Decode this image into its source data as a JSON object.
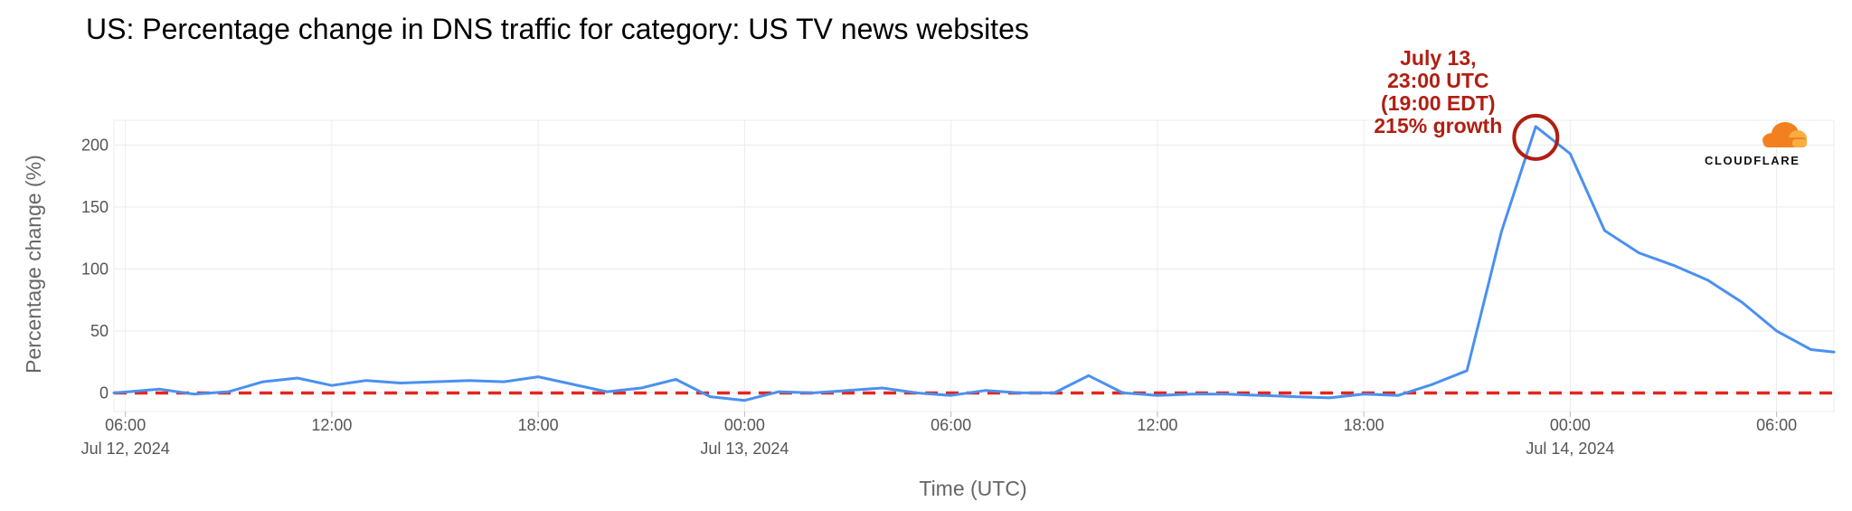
{
  "chart_data": {
    "type": "line",
    "title": "US: Percentage change in DNS traffic for category: US TV news websites",
    "xlabel": "Time (UTC)",
    "ylabel": "Percentage change (%)",
    "ylim": [
      -15,
      220
    ],
    "xlim": [
      "2024-07-12 05:40",
      "2024-07-14 07:40"
    ],
    "grid": true,
    "y_ticks": [
      0,
      50,
      100,
      150,
      200
    ],
    "x_ticks": [
      {
        "at": "2024-07-12 06:00",
        "label": "06:00",
        "sublabel": "Jul 12, 2024"
      },
      {
        "at": "2024-07-12 12:00",
        "label": "12:00",
        "sublabel": ""
      },
      {
        "at": "2024-07-12 18:00",
        "label": "18:00",
        "sublabel": ""
      },
      {
        "at": "2024-07-13 00:00",
        "label": "00:00",
        "sublabel": "Jul 13, 2024"
      },
      {
        "at": "2024-07-13 06:00",
        "label": "06:00",
        "sublabel": ""
      },
      {
        "at": "2024-07-13 12:00",
        "label": "12:00",
        "sublabel": ""
      },
      {
        "at": "2024-07-13 18:00",
        "label": "18:00",
        "sublabel": ""
      },
      {
        "at": "2024-07-14 00:00",
        "label": "00:00",
        "sublabel": "Jul 14, 2024"
      },
      {
        "at": "2024-07-14 06:00",
        "label": "06:00",
        "sublabel": ""
      }
    ],
    "series": [
      {
        "color": "#4a90f0",
        "points": [
          [
            "2024-07-12 05:40",
            0
          ],
          [
            "2024-07-12 07:00",
            3
          ],
          [
            "2024-07-12 08:00",
            -1
          ],
          [
            "2024-07-12 09:00",
            1
          ],
          [
            "2024-07-12 10:00",
            9
          ],
          [
            "2024-07-12 11:00",
            12
          ],
          [
            "2024-07-12 12:00",
            6
          ],
          [
            "2024-07-12 13:00",
            10
          ],
          [
            "2024-07-12 14:00",
            8
          ],
          [
            "2024-07-12 15:00",
            9
          ],
          [
            "2024-07-12 16:00",
            10
          ],
          [
            "2024-07-12 17:00",
            9
          ],
          [
            "2024-07-12 18:00",
            13
          ],
          [
            "2024-07-12 19:00",
            7
          ],
          [
            "2024-07-12 20:00",
            1
          ],
          [
            "2024-07-12 21:00",
            4
          ],
          [
            "2024-07-12 22:00",
            11
          ],
          [
            "2024-07-12 23:00",
            -3
          ],
          [
            "2024-07-13 00:00",
            -6
          ],
          [
            "2024-07-13 01:00",
            1
          ],
          [
            "2024-07-13 02:00",
            0
          ],
          [
            "2024-07-13 03:00",
            2
          ],
          [
            "2024-07-13 04:00",
            4
          ],
          [
            "2024-07-13 05:00",
            0
          ],
          [
            "2024-07-13 06:00",
            -2
          ],
          [
            "2024-07-13 07:00",
            2
          ],
          [
            "2024-07-13 08:00",
            0
          ],
          [
            "2024-07-13 09:00",
            0
          ],
          [
            "2024-07-13 10:00",
            14
          ],
          [
            "2024-07-13 11:00",
            0
          ],
          [
            "2024-07-13 12:00",
            -2
          ],
          [
            "2024-07-13 13:00",
            -1
          ],
          [
            "2024-07-13 14:00",
            -1
          ],
          [
            "2024-07-13 15:00",
            -2
          ],
          [
            "2024-07-13 16:00",
            -3
          ],
          [
            "2024-07-13 17:00",
            -4
          ],
          [
            "2024-07-13 18:00",
            -1
          ],
          [
            "2024-07-13 19:00",
            -2
          ],
          [
            "2024-07-13 20:00",
            7
          ],
          [
            "2024-07-13 21:00",
            18
          ],
          [
            "2024-07-13 22:00",
            130
          ],
          [
            "2024-07-13 23:00",
            215
          ],
          [
            "2024-07-14 00:00",
            193
          ],
          [
            "2024-07-14 01:00",
            131
          ],
          [
            "2024-07-14 02:00",
            113
          ],
          [
            "2024-07-14 03:00",
            103
          ],
          [
            "2024-07-14 04:00",
            91
          ],
          [
            "2024-07-14 05:00",
            73
          ],
          [
            "2024-07-14 06:00",
            50
          ],
          [
            "2024-07-14 07:00",
            35
          ],
          [
            "2024-07-14 07:40",
            33
          ]
        ]
      }
    ],
    "reference_line": {
      "y": 0,
      "color": "#e3261f",
      "style": "dashed"
    },
    "annotation": {
      "lines": [
        "July 13,",
        "23:00 UTC",
        "(19:00 EDT)",
        "215% growth"
      ],
      "at": "2024-07-13 23:00",
      "value": 215,
      "color": "#b11e12"
    },
    "colors": {
      "grid": "#ececec",
      "series": "#4a90f0",
      "reference": "#e3261f"
    }
  },
  "logo": {
    "text": "CLOUDFLARE",
    "icon": "cloudflare-cloud-icon",
    "colors": [
      "#f38020",
      "#faae40"
    ]
  }
}
